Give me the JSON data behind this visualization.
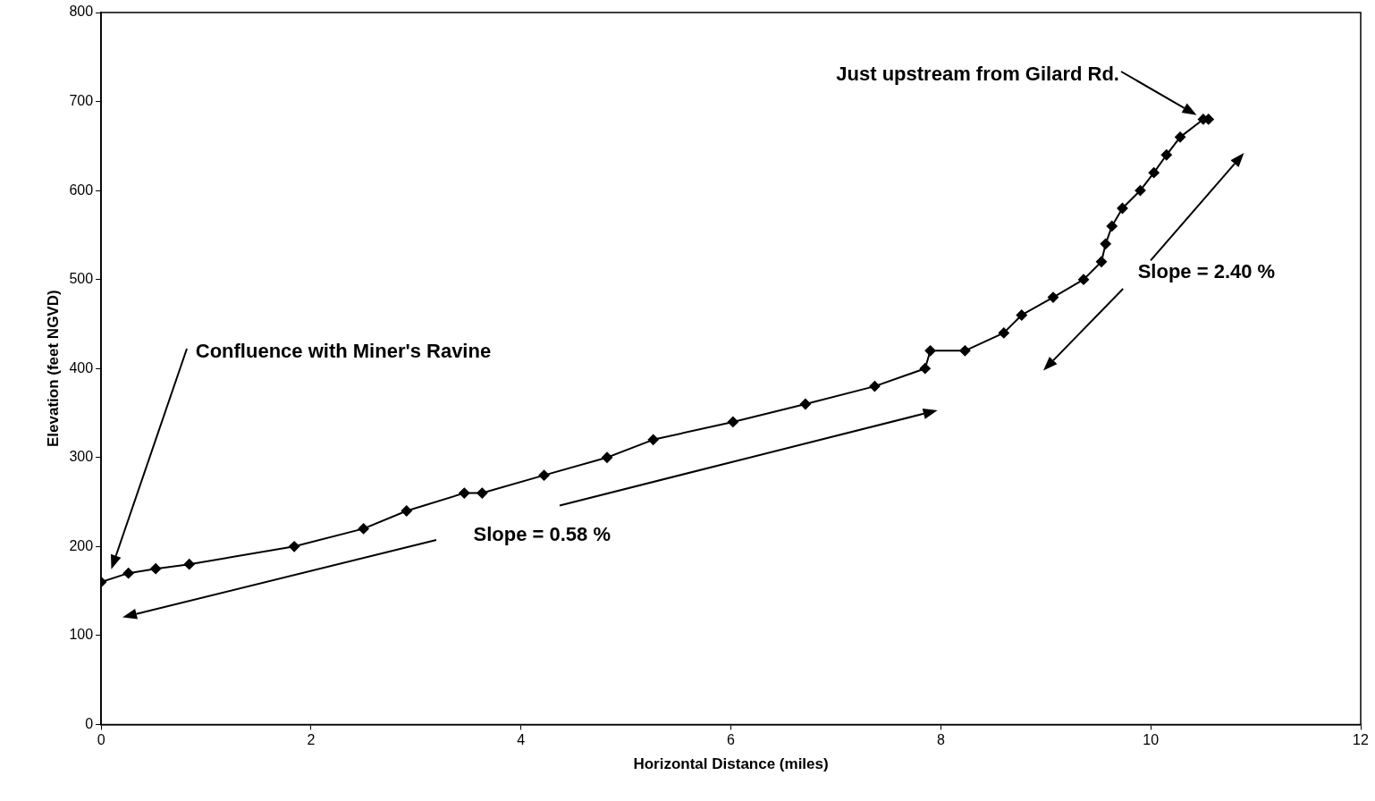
{
  "chart_data": {
    "type": "line",
    "xlabel": "Horizontal Distance (miles)",
    "ylabel": "Elevation (feet NGVD)",
    "x": [
      0,
      0.26,
      0.52,
      0.84,
      1.84,
      2.5,
      2.91,
      3.46,
      3.63,
      4.22,
      4.82,
      5.26,
      6.02,
      6.71,
      7.37,
      7.85,
      7.9,
      8.23,
      8.6,
      8.77,
      9.07,
      9.36,
      9.53,
      9.57,
      9.63,
      9.73,
      9.9,
      10.03,
      10.15,
      10.28,
      10.5,
      10.55
    ],
    "series": [
      {
        "color": "#000000",
        "values": [
          160,
          170,
          175,
          180,
          200,
          220,
          240,
          260,
          260,
          280,
          300,
          320,
          340,
          360,
          380,
          400,
          420,
          420,
          440,
          460,
          480,
          500,
          520,
          540,
          560,
          580,
          600,
          620,
          640,
          660,
          680,
          680
        ]
      }
    ],
    "xlim": [
      0,
      12
    ],
    "xticks": [
      0,
      2,
      4,
      6,
      8,
      10,
      12
    ],
    "ylim": [
      0,
      800
    ],
    "yticks": [
      0,
      100,
      200,
      300,
      400,
      500,
      600,
      700,
      800
    ],
    "grid": false,
    "legend": false,
    "marker": "diamond",
    "line_style": "solid",
    "annotations": [
      "Confluence with Miner's Ravine",
      "Just upstream from Gilard Rd.",
      "Slope = 0.58 %",
      "Slope = 2.40 %"
    ]
  }
}
